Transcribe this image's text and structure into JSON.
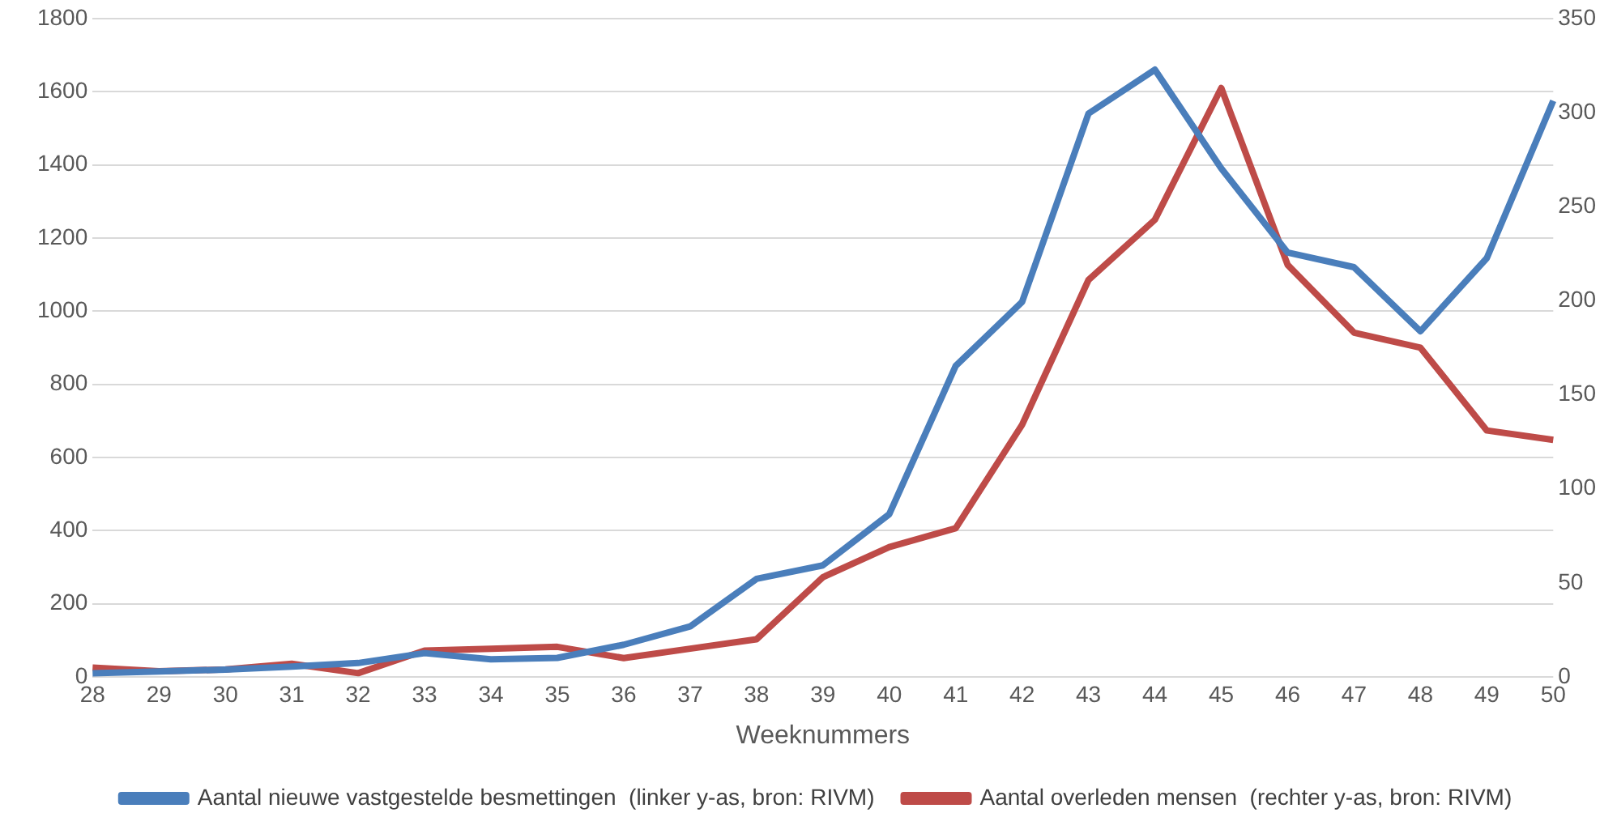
{
  "chart_data": {
    "type": "line",
    "xlabel": "Weeknummers",
    "categories": [
      "28",
      "29",
      "30",
      "31",
      "32",
      "33",
      "34",
      "35",
      "36",
      "37",
      "38",
      "39",
      "40",
      "41",
      "42",
      "43",
      "44",
      "45",
      "46",
      "47",
      "48",
      "49",
      "50"
    ],
    "series": [
      {
        "name": "Aantal nieuwe vastgestelde besmettingen  (linker y-as, bron: RIVM)",
        "color": "#4a7ebb",
        "values": [
          10,
          15,
          20,
          28,
          38,
          65,
          48,
          52,
          88,
          138,
          268,
          305,
          445,
          850,
          1025,
          1540,
          1660,
          1390,
          1160,
          1120,
          945,
          1145,
          1575
        ]
      },
      {
        "name": "Aantal overleden mensen  (rechter y-as, bron: RIVM)",
        "color": "#be4b48",
        "axis": "y2",
        "values": [
          5,
          3,
          4,
          7,
          2,
          14,
          15,
          16,
          10,
          15,
          20,
          53,
          69,
          79,
          134,
          211,
          243,
          313,
          219,
          183,
          175,
          131,
          126
        ]
      }
    ],
    "ylim": [
      0,
      1800
    ],
    "yticks": [
      0,
      200,
      400,
      600,
      800,
      1000,
      1200,
      1400,
      1600,
      1800
    ],
    "y2lim": [
      0,
      350
    ],
    "y2ticks": [
      0,
      50,
      100,
      150,
      200,
      250,
      300,
      350
    ],
    "grid": "y",
    "legend": "bottom",
    "marker": "none",
    "line_style": "solid"
  }
}
